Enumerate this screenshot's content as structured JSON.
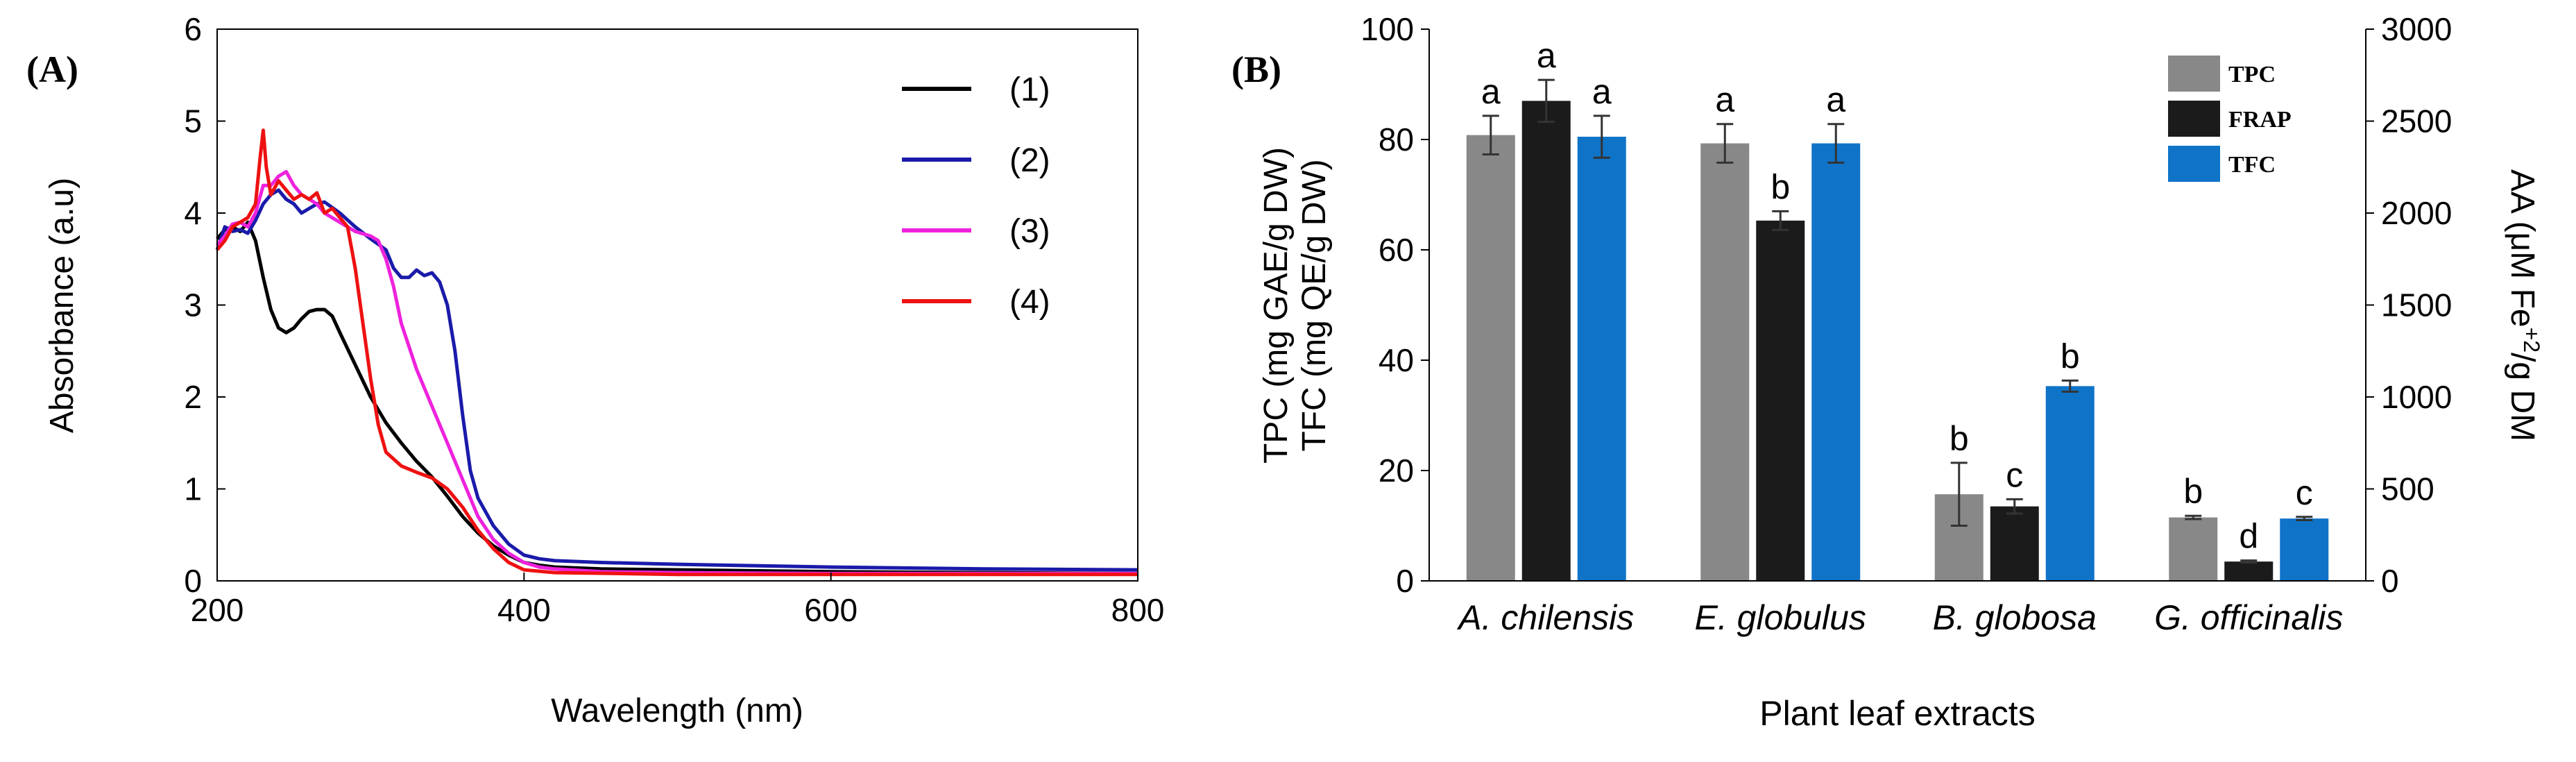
{
  "chart_data": [
    {
      "type": "line",
      "panel_label": "(A)",
      "xlabel": "Wavelength (nm)",
      "ylabel": "Absorbance (a.u)",
      "xlim": [
        200,
        800
      ],
      "ylim": [
        0,
        6
      ],
      "xticks": [
        "200",
        "400",
        "600",
        "800"
      ],
      "yticks": [
        "0",
        "1",
        "2",
        "3",
        "4",
        "5",
        "6"
      ],
      "legend_position": "top-right",
      "series": [
        {
          "name": "(1)",
          "color": "#000000",
          "points": [
            [
              200,
              3.72
            ],
            [
              205,
              3.82
            ],
            [
              210,
              3.85
            ],
            [
              215,
              3.8
            ],
            [
              220,
              3.9
            ],
            [
              225,
              3.7
            ],
            [
              230,
              3.3
            ],
            [
              235,
              2.95
            ],
            [
              240,
              2.75
            ],
            [
              245,
              2.7
            ],
            [
              250,
              2.75
            ],
            [
              255,
              2.85
            ],
            [
              260,
              2.93
            ],
            [
              265,
              2.95
            ],
            [
              270,
              2.95
            ],
            [
              275,
              2.88
            ],
            [
              280,
              2.7
            ],
            [
              290,
              2.35
            ],
            [
              300,
              2.0
            ],
            [
              310,
              1.72
            ],
            [
              320,
              1.5
            ],
            [
              330,
              1.3
            ],
            [
              340,
              1.13
            ],
            [
              350,
              0.92
            ],
            [
              360,
              0.7
            ],
            [
              370,
              0.52
            ],
            [
              380,
              0.38
            ],
            [
              390,
              0.28
            ],
            [
              400,
              0.2
            ],
            [
              410,
              0.17
            ],
            [
              420,
              0.15
            ],
            [
              450,
              0.13
            ],
            [
              500,
              0.12
            ],
            [
              600,
              0.1
            ],
            [
              700,
              0.09
            ],
            [
              800,
              0.08
            ]
          ]
        },
        {
          "name": "(2)",
          "color": "#1a1aaa",
          "points": [
            [
              200,
              3.6
            ],
            [
              205,
              3.85
            ],
            [
              210,
              3.8
            ],
            [
              215,
              3.82
            ],
            [
              220,
              3.78
            ],
            [
              225,
              3.92
            ],
            [
              230,
              4.1
            ],
            [
              235,
              4.2
            ],
            [
              240,
              4.25
            ],
            [
              245,
              4.15
            ],
            [
              250,
              4.1
            ],
            [
              255,
              4.0
            ],
            [
              260,
              4.05
            ],
            [
              265,
              4.1
            ],
            [
              270,
              4.12
            ],
            [
              280,
              4.0
            ],
            [
              290,
              3.85
            ],
            [
              300,
              3.72
            ],
            [
              310,
              3.6
            ],
            [
              315,
              3.4
            ],
            [
              320,
              3.3
            ],
            [
              325,
              3.3
            ],
            [
              330,
              3.38
            ],
            [
              335,
              3.32
            ],
            [
              340,
              3.35
            ],
            [
              345,
              3.25
            ],
            [
              350,
              3.0
            ],
            [
              355,
              2.5
            ],
            [
              360,
              1.8
            ],
            [
              365,
              1.2
            ],
            [
              370,
              0.9
            ],
            [
              380,
              0.6
            ],
            [
              390,
              0.4
            ],
            [
              400,
              0.28
            ],
            [
              410,
              0.24
            ],
            [
              420,
              0.22
            ],
            [
              450,
              0.2
            ],
            [
              500,
              0.18
            ],
            [
              600,
              0.15
            ],
            [
              700,
              0.13
            ],
            [
              800,
              0.12
            ]
          ]
        },
        {
          "name": "(3)",
          "color": "#ee22dd",
          "points": [
            [
              200,
              3.65
            ],
            [
              205,
              3.75
            ],
            [
              210,
              3.88
            ],
            [
              215,
              3.9
            ],
            [
              220,
              3.85
            ],
            [
              225,
              4.0
            ],
            [
              230,
              4.3
            ],
            [
              235,
              4.3
            ],
            [
              240,
              4.4
            ],
            [
              245,
              4.45
            ],
            [
              250,
              4.3
            ],
            [
              255,
              4.2
            ],
            [
              260,
              4.15
            ],
            [
              265,
              4.1
            ],
            [
              270,
              4.0
            ],
            [
              280,
              3.9
            ],
            [
              290,
              3.8
            ],
            [
              300,
              3.75
            ],
            [
              305,
              3.7
            ],
            [
              310,
              3.5
            ],
            [
              315,
              3.2
            ],
            [
              320,
              2.8
            ],
            [
              330,
              2.3
            ],
            [
              340,
              1.9
            ],
            [
              350,
              1.5
            ],
            [
              360,
              1.1
            ],
            [
              370,
              0.7
            ],
            [
              380,
              0.45
            ],
            [
              390,
              0.3
            ],
            [
              400,
              0.2
            ],
            [
              410,
              0.15
            ],
            [
              420,
              0.13
            ],
            [
              450,
              0.1
            ],
            [
              500,
              0.09
            ],
            [
              600,
              0.08
            ],
            [
              700,
              0.08
            ],
            [
              800,
              0.08
            ]
          ]
        },
        {
          "name": "(4)",
          "color": "#ee1111",
          "points": [
            [
              200,
              3.6
            ],
            [
              205,
              3.7
            ],
            [
              210,
              3.85
            ],
            [
              215,
              3.9
            ],
            [
              220,
              3.95
            ],
            [
              225,
              4.1
            ],
            [
              228,
              4.6
            ],
            [
              230,
              4.9
            ],
            [
              232,
              4.5
            ],
            [
              235,
              4.2
            ],
            [
              240,
              4.35
            ],
            [
              245,
              4.25
            ],
            [
              250,
              4.15
            ],
            [
              255,
              4.2
            ],
            [
              260,
              4.15
            ],
            [
              265,
              4.22
            ],
            [
              270,
              4.0
            ],
            [
              275,
              4.05
            ],
            [
              280,
              3.95
            ],
            [
              285,
              3.85
            ],
            [
              290,
              3.4
            ],
            [
              295,
              2.8
            ],
            [
              300,
              2.2
            ],
            [
              305,
              1.7
            ],
            [
              310,
              1.4
            ],
            [
              320,
              1.25
            ],
            [
              330,
              1.18
            ],
            [
              340,
              1.12
            ],
            [
              350,
              1.0
            ],
            [
              360,
              0.8
            ],
            [
              370,
              0.55
            ],
            [
              380,
              0.35
            ],
            [
              390,
              0.2
            ],
            [
              400,
              0.12
            ],
            [
              420,
              0.09
            ],
            [
              500,
              0.07
            ],
            [
              600,
              0.07
            ],
            [
              800,
              0.07
            ]
          ]
        }
      ]
    },
    {
      "type": "bar",
      "panel_label": "(B)",
      "categories": [
        "A. chilensis",
        "E. globulus",
        "B. globosa",
        "G. officinalis"
      ],
      "xlabel": "Plant leaf extracts",
      "ylabel": "TPC (mg GAE/g DW)",
      "ylabel2": "TFC (mg QE/g DW)",
      "ylabel_right_prefix": "AA (μM Fe",
      "ylabel_right_sup": "+2",
      "ylabel_right_suffix": "/g DM",
      "ylim": [
        0,
        100
      ],
      "ylim_right": [
        0,
        3000
      ],
      "yticks_left": [
        "0",
        "20",
        "40",
        "60",
        "80",
        "100"
      ],
      "yticks_right": [
        "0",
        "500",
        "1000",
        "1500",
        "2000",
        "2500",
        "3000"
      ],
      "legend_position": "top-right",
      "series": [
        {
          "name": "TPC",
          "color": "#888888",
          "values": [
            80.8,
            79.3,
            15.7,
            11.5
          ],
          "errors": [
            3.5,
            3.5,
            5.7,
            0.3
          ],
          "letters": [
            "a",
            "a",
            "b",
            "b"
          ]
        },
        {
          "name": "FRAP",
          "color": "#1b1b1b",
          "values": [
            87.0,
            65.3,
            13.5,
            3.5
          ],
          "errors": [
            3.8,
            1.7,
            1.3,
            0.2
          ],
          "letters": [
            "a",
            "b",
            "c",
            "d"
          ]
        },
        {
          "name": "TFC",
          "color": "#0f74c8",
          "values": [
            80.5,
            79.3,
            35.3,
            11.3
          ],
          "errors": [
            3.8,
            3.5,
            1.0,
            0.3
          ],
          "letters": [
            "a",
            "a",
            "b",
            "c"
          ]
        }
      ]
    }
  ]
}
